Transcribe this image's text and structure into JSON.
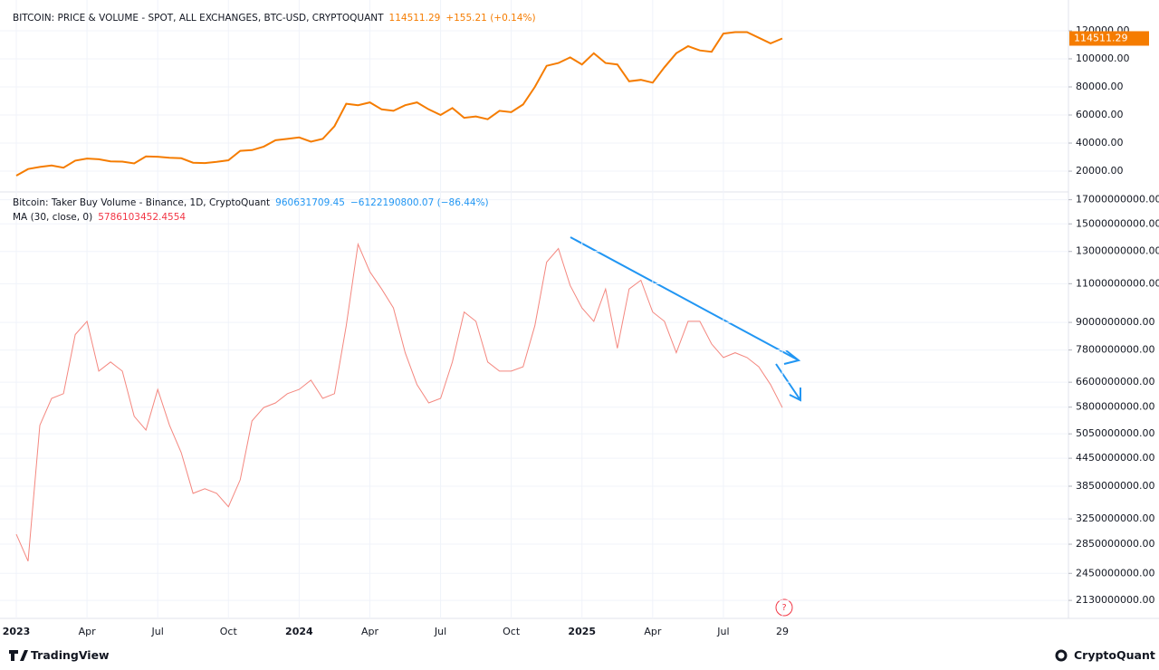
{
  "chart_data": [
    {
      "type": "line",
      "title": "BITCOIN: PRICE & VOLUME - SPOT, ALL EXCHANGES, BTC-USD, CRYPTOQUANT",
      "change": "+155.21 (+0.14%)",
      "series": [
        {
          "color": "#f57c00",
          "values": [
            16800,
            21500,
            23000,
            24000,
            22500,
            27500,
            29000,
            28500,
            27000,
            26800,
            25500,
            30500,
            30300,
            29500,
            29200,
            26000,
            25800,
            26600,
            27800,
            34500,
            35000,
            37500,
            42000,
            43000,
            44000,
            41000,
            43000,
            52000,
            68000,
            67000,
            69000,
            64000,
            63000,
            67000,
            69000,
            64000,
            60000,
            65000,
            58000,
            59000,
            57000,
            63000,
            62000,
            67500,
            80000,
            95000,
            97000,
            101000,
            96000,
            104000,
            97000,
            96000,
            84000,
            85000,
            83000,
            94000,
            104000,
            109000,
            106000,
            105000,
            118000,
            119000,
            119000,
            115000,
            111000,
            114511.29
          ]
        }
      ],
      "ylim": [
        5200,
        141900
      ],
      "yticks": [
        {
          "value": 20000,
          "label": "20000.00"
        },
        {
          "value": 40000,
          "label": "40000.00"
        },
        {
          "value": 60000,
          "label": "60000.00"
        },
        {
          "value": 80000,
          "label": "80000.00"
        },
        {
          "value": 100000,
          "label": "100000.00"
        },
        {
          "value": 120000,
          "label": "120000.00"
        }
      ],
      "grid": true
    },
    {
      "type": "line",
      "title": "Bitcoin: Taker Buy Volume - Binance, 1D, CryptoQuant",
      "last_value": 960631709.45,
      "change": "−6122190800.07 (−86.44%)",
      "categories": [
        "2023",
        null,
        null,
        null,
        null,
        null,
        "Apr",
        null,
        null,
        null,
        null,
        null,
        "Jul",
        null,
        null,
        null,
        null,
        null,
        "Oct",
        null,
        null,
        null,
        null,
        null,
        "2024",
        null,
        null,
        null,
        null,
        null,
        "Apr",
        null,
        null,
        null,
        null,
        null,
        "Jul",
        null,
        null,
        null,
        null,
        null,
        "Oct",
        null,
        null,
        null,
        null,
        null,
        "2025",
        null,
        null,
        null,
        null,
        null,
        "Apr",
        null,
        null,
        null,
        null,
        null,
        "Jul",
        null,
        null,
        null,
        null,
        "29"
      ],
      "series": [
        {
          "name": "MA (30, close, 0)",
          "color": "#f4877f",
          "values": [
            3000000000,
            2610000000,
            5280000000,
            6070000000,
            6220000000,
            8450000000,
            9050000000,
            6990000000,
            7330000000,
            6990000000,
            5530000000,
            5150000000,
            6360000000,
            5280000000,
            4580000000,
            3710000000,
            3800000000,
            3710000000,
            3460000000,
            3980000000,
            5400000000,
            5790000000,
            5930000000,
            6220000000,
            6360000000,
            6670000000,
            6070000000,
            6220000000,
            8850000000,
            13500000000,
            11700000000,
            10700000000,
            9700000000,
            7690000000,
            6520000000,
            5930000000,
            6070000000,
            7330000000,
            9500000000,
            9050000000,
            7330000000,
            6990000000,
            6990000000,
            7150000000,
            8850000000,
            12300000000,
            13200000000,
            10900000000,
            9700000000,
            9050000000,
            10700000000,
            7870000000,
            10700000000,
            11200000000,
            9500000000,
            9050000000,
            7690000000,
            9050000000,
            9050000000,
            8050000000,
            7500000000,
            7690000000,
            7500000000,
            7150000000,
            6520000000,
            5786103452.4554
          ]
        }
      ],
      "log_scale": true,
      "ylim": [
        1940000000,
        17700000000
      ],
      "yticks": [
        {
          "value": 2130000000,
          "label": "2130000000.00"
        },
        {
          "value": 2450000000,
          "label": "2450000000.00"
        },
        {
          "value": 2850000000,
          "label": "2850000000.00"
        },
        {
          "value": 3250000000,
          "label": "3250000000.00"
        },
        {
          "value": 3850000000,
          "label": "3850000000.00"
        },
        {
          "value": 4450000000,
          "label": "4450000000.00"
        },
        {
          "value": 5050000000,
          "label": "5050000000.00"
        },
        {
          "value": 5800000000,
          "label": "5800000000.00"
        },
        {
          "value": 6600000000,
          "label": "6600000000.00"
        },
        {
          "value": 7800000000,
          "label": "7800000000.00"
        },
        {
          "value": 9000000000,
          "label": "9000000000.00"
        },
        {
          "value": 11000000000,
          "label": "11000000000.00"
        },
        {
          "value": 13000000000,
          "label": "13000000000.00"
        },
        {
          "value": 15000000000,
          "label": "15000000000.00"
        },
        {
          "value": 17000000000,
          "label": "17000000000.00"
        }
      ],
      "grid": true
    }
  ],
  "event_marker": "?",
  "footer": {
    "left": "TradingView",
    "right": "CryptoQuant"
  }
}
